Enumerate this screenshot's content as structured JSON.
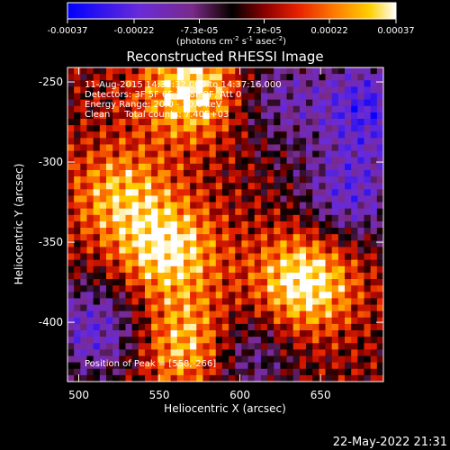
{
  "chart_data": {
    "type": "heatmap",
    "title": "Reconstructed RHESSI Image",
    "xlabel": "Heliocentric X (arcsec)",
    "ylabel": "Heliocentric Y (arcsec)",
    "xlim": [
      493,
      689
    ],
    "ylim": [
      -437,
      -241
    ],
    "x_ticks": [
      "500",
      "550",
      "600",
      "650"
    ],
    "x_tick_values": [
      500,
      550,
      600,
      650
    ],
    "y_ticks": [
      "-250",
      "-300",
      "-350",
      "-400"
    ],
    "y_tick_values": [
      -250,
      -300,
      -350,
      -400
    ],
    "colorbar": {
      "min": -0.00037,
      "max": 0.00037,
      "tick_labels": [
        "-0.00037",
        "-0.00022",
        "-7.3e-05",
        "7.3e-05",
        "0.00022",
        "0.00037"
      ],
      "tick_values": [
        -0.00037,
        -0.00022,
        -7.3e-05,
        7.3e-05,
        0.00022,
        0.00037
      ],
      "unit_text": "(photons cm",
      "unit_exp1": "-2",
      "unit_mid": " s",
      "unit_exp2": "-1",
      "unit_mid2": " asec",
      "unit_exp3": "-2",
      "unit_close": ")"
    },
    "annotations": {
      "time": "11-Aug-2015 14:32:32.000 to 14:37:16.000",
      "detectors": "Detectors: 3F 5F 6F 7F 8F 9F, Att 0",
      "energy": "Energy Range: 20.0 - 50.0 keV",
      "clean": "Clean     Total counts: 7.40E+03",
      "peak": "Position of Peak = [558,-266]"
    },
    "hot_regions": [
      {
        "x": 570,
        "y": -255,
        "intensity": 0.00032
      },
      {
        "x": 555,
        "y": -355,
        "intensity": 0.0003
      },
      {
        "x": 640,
        "y": -375,
        "intensity": 0.00034
      },
      {
        "x": 570,
        "y": -415,
        "intensity": 0.0003
      },
      {
        "x": 525,
        "y": -320,
        "intensity": 0.00022
      }
    ],
    "cold_regions": [
      {
        "x": 680,
        "y": -265,
        "intensity": -0.0003
      },
      {
        "x": 668,
        "y": -320,
        "intensity": -0.00026
      },
      {
        "x": 510,
        "y": -405,
        "intensity": -0.00026
      },
      {
        "x": 600,
        "y": -420,
        "intensity": -0.00022
      },
      {
        "x": 625,
        "y": -260,
        "intensity": -0.00018
      }
    ]
  },
  "footer": {
    "date": "22-May-2022 21:31"
  }
}
